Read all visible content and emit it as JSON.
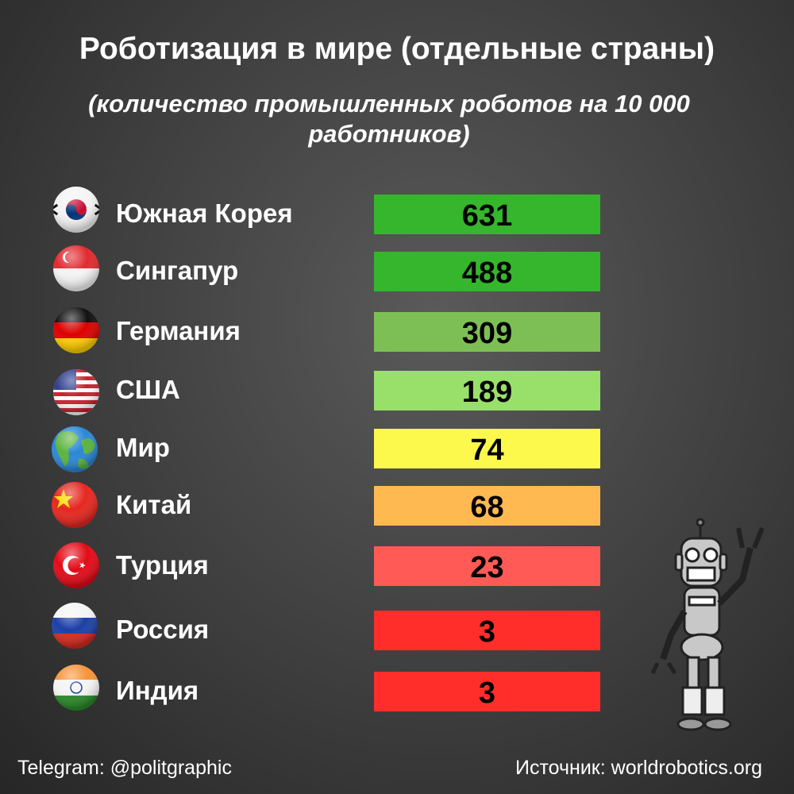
{
  "header": {
    "title": "Роботизация в мире (отдельные страны)",
    "subtitle": "(количество промышленных роботов на 10 000 работников)"
  },
  "rows": [
    {
      "country": "Южная Корея",
      "value": "631",
      "color": "#35b62c"
    },
    {
      "country": "Сингапур",
      "value": "488",
      "color": "#35b62c"
    },
    {
      "country": "Германия",
      "value": "309",
      "color": "#7dbf55"
    },
    {
      "country": "США",
      "value": "189",
      "color": "#99e06a"
    },
    {
      "country": "Мир",
      "value": "74",
      "color": "#fdf84c"
    },
    {
      "country": "Китай",
      "value": "68",
      "color": "#ffb950"
    },
    {
      "country": "Турция",
      "value": "23",
      "color": "#ff5a55"
    },
    {
      "country": "Россия",
      "value": "3",
      "color": "#ff2e2a"
    },
    {
      "country": "Индия",
      "value": "3",
      "color": "#ff2e2a"
    }
  ],
  "footer": {
    "left": "Telegram: @politgraphic",
    "right": "Источник: worldrobotics.org"
  }
}
